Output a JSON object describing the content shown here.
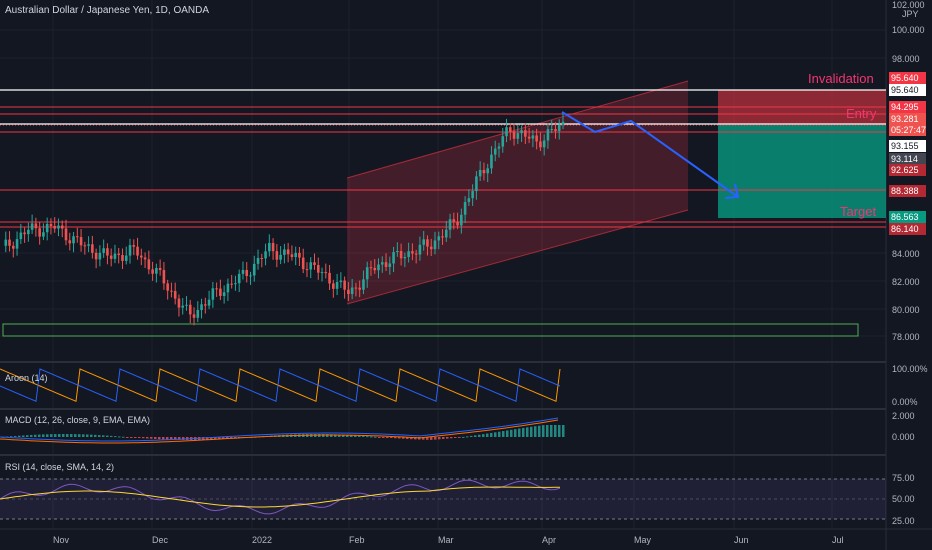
{
  "header": {
    "title": "Australian Dollar / Japanese Yen, 1D, OANDA"
  },
  "price_axis": {
    "top_label": "102.000",
    "unit": "JPY",
    "ticks": [
      "100.000",
      "98.000",
      "84.000",
      "82.000",
      "80.000",
      "78.000"
    ]
  },
  "price_tags": [
    {
      "key": "invalidation_tag",
      "text": "95.640",
      "bg": "#f23645",
      "fg": "#ffffff"
    },
    {
      "key": "white_line_tag",
      "text": "95.640",
      "bg": "#ffffff",
      "fg": "#131722"
    },
    {
      "key": "entry_tag",
      "text": "94.295",
      "bg": "#f23645",
      "fg": "#ffffff"
    },
    {
      "key": "last_price_tag",
      "text": "93.281",
      "bg": "#ef5350",
      "fg": "#ffffff"
    },
    {
      "key": "countdown_tag",
      "text": "05:27:47",
      "bg": "#ef5350",
      "fg": "#ffffff"
    },
    {
      "key": "ref_tag",
      "text": "93.155",
      "bg": "#ffffff",
      "fg": "#131722"
    },
    {
      "key": "prev_close_tag",
      "text": "93.114",
      "bg": "#434651",
      "fg": "#ffffff"
    },
    {
      "key": "level_tag_1",
      "text": "92.625",
      "bg": "#b22833",
      "fg": "#ffffff"
    },
    {
      "key": "level_tag_2",
      "text": "88.388",
      "bg": "#b22833",
      "fg": "#ffffff"
    },
    {
      "key": "target_tag",
      "text": "86.563",
      "bg": "#089981",
      "fg": "#ffffff"
    },
    {
      "key": "level_tag_3",
      "text": "86.140",
      "bg": "#b22833",
      "fg": "#ffffff"
    }
  ],
  "annotations": {
    "invalidation": "Invalidation",
    "entry": "Entry",
    "target": "Target"
  },
  "indicators": {
    "aroon": {
      "title": "Aroon (14)",
      "ticks": [
        "100.00%",
        "0.00%"
      ],
      "color_up": "#ff9800",
      "color_down": "#2962ff"
    },
    "macd": {
      "title": "MACD (12, 26, close, 9, EMA, EMA)",
      "ticks": [
        "2.000",
        "0.000"
      ]
    },
    "rsi": {
      "title": "RSI (14, close, SMA, 14, 2)",
      "ticks": [
        "75.00",
        "50.00",
        "25.00"
      ]
    }
  },
  "time_axis": [
    "Nov",
    "Dec",
    "2022",
    "Feb",
    "Mar",
    "Apr",
    "May",
    "Jun",
    "Jul"
  ],
  "colors": {
    "bg": "#131722",
    "up": "#26a69a",
    "down": "#ef5350",
    "channel": "#f23645",
    "arrow": "#2962ff",
    "target_zone": "#089981",
    "support_box": "#4caf50"
  },
  "chart_data": {
    "type": "candlestick",
    "symbol": "Australian Dollar / Japanese Yen",
    "interval": "1D",
    "price_range": [
      77,
      102
    ],
    "close_path": [
      {
        "t": "Oct",
        "price": 84.2
      },
      {
        "t": "Oct",
        "price": 85.6
      },
      {
        "t": "Oct end",
        "price": 85.8
      },
      {
        "t": "Nov",
        "price": 84.5
      },
      {
        "t": "Nov",
        "price": 83.6
      },
      {
        "t": "Nov",
        "price": 84.1
      },
      {
        "t": "Nov",
        "price": 82.0
      },
      {
        "t": "Dec",
        "price": 79.3
      },
      {
        "t": "Dec",
        "price": 81.0
      },
      {
        "t": "Dec",
        "price": 82.2
      },
      {
        "t": "2022",
        "price": 84.2
      },
      {
        "t": "Jan",
        "price": 83.6
      },
      {
        "t": "Jan",
        "price": 82.4
      },
      {
        "t": "Feb",
        "price": 81.0
      },
      {
        "t": "Feb",
        "price": 83.0
      },
      {
        "t": "Feb",
        "price": 83.8
      },
      {
        "t": "Mar",
        "price": 84.5
      },
      {
        "t": "Mar",
        "price": 86.2
      },
      {
        "t": "Mar",
        "price": 90.0
      },
      {
        "t": "Mar end",
        "price": 93.0
      },
      {
        "t": "Mar end",
        "price": 92.0
      },
      {
        "t": "Apr",
        "price": 93.3
      }
    ],
    "levels": [
      95.64,
      94.295,
      93.281,
      93.155,
      93.114,
      92.625,
      88.388,
      86.563,
      86.14
    ]
  }
}
